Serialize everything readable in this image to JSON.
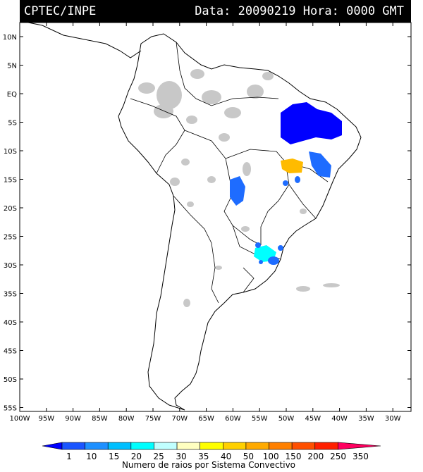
{
  "header": {
    "agency": "CPTEC/INPE",
    "datetime": "Data: 20090219 Hora: 0000 GMT"
  },
  "axes": {
    "lat_labels": [
      "10N",
      "5N",
      "EQ",
      "5S",
      "10S",
      "15S",
      "20S",
      "25S",
      "30S",
      "35S",
      "40S",
      "45S",
      "50S",
      "55S"
    ],
    "lon_labels": [
      "100W",
      "95W",
      "90W",
      "85W",
      "80W",
      "75W",
      "70W",
      "65W",
      "60W",
      "55W",
      "50W",
      "45W",
      "40W",
      "35W",
      "30W"
    ]
  },
  "colorbar": {
    "title": "Numero de raios por Sistema Convectivo",
    "labels": [
      "1",
      "10",
      "15",
      "20",
      "25",
      "30",
      "35",
      "40",
      "50",
      "100",
      "150",
      "200",
      "250",
      "350"
    ],
    "colors": [
      "#0000ff",
      "#1a55ff",
      "#1e90ff",
      "#00bfff",
      "#00ffff",
      "#c0ffff",
      "#ffffc0",
      "#ffff00",
      "#ffd000",
      "#ffaa00",
      "#ff8000",
      "#ff5000",
      "#ff2000",
      "#ff0060"
    ]
  },
  "colors": {
    "land_outline": "#000000",
    "cloud": "#c8c8c8"
  }
}
